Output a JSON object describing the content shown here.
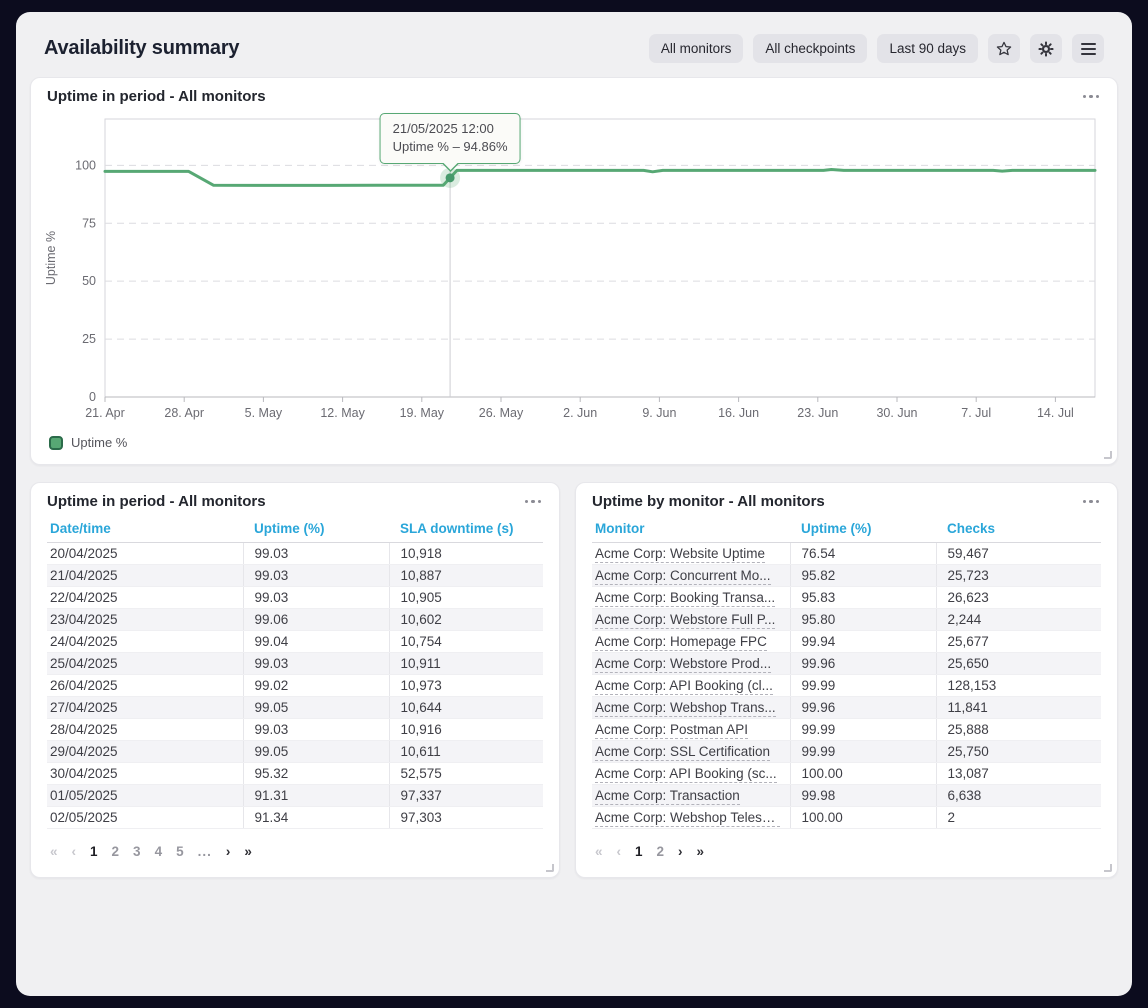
{
  "header": {
    "title": "Availability summary",
    "filters": {
      "monitors": "All monitors",
      "checkpoints": "All checkpoints",
      "period": "Last 90 days"
    }
  },
  "chart_card": {
    "title": "Uptime in period - All monitors",
    "legend_label": "Uptime %"
  },
  "chart_data": {
    "type": "line",
    "title": "Uptime in period - All monitors",
    "ylabel": "Uptime %",
    "ylim": [
      0,
      120
    ],
    "yticks": [
      0,
      25,
      50,
      75,
      100
    ],
    "x_tick_labels": [
      "21. Apr",
      "28. Apr",
      "5. May",
      "12. May",
      "19. May",
      "26. May",
      "2. Jun",
      "9. Jun",
      "16. Jun",
      "23. Jun",
      "30. Jun",
      "7. Jul",
      "14. Jul"
    ],
    "x_tick_interval_days": 7,
    "span_days": 87.5,
    "grid": "horizontal-dashed",
    "legend_position": "bottom-left",
    "series": [
      {
        "name": "Uptime %",
        "color": "#57a874",
        "points": [
          [
            0,
            97.4
          ],
          [
            7.4,
            97.4
          ],
          [
            9.6,
            91.4
          ],
          [
            20,
            91.35
          ],
          [
            24,
            91.4
          ],
          [
            29.9,
            91.4
          ],
          [
            31.1,
            97.8
          ],
          [
            41,
            97.8
          ],
          [
            47.6,
            97.8
          ],
          [
            48.4,
            97.2
          ],
          [
            49.3,
            97.8
          ],
          [
            63.5,
            97.8
          ],
          [
            64.2,
            98.2
          ],
          [
            65.3,
            97.8
          ],
          [
            78.5,
            97.8
          ],
          [
            79.3,
            97.5
          ],
          [
            80.2,
            97.8
          ],
          [
            87.5,
            97.8
          ]
        ]
      }
    ],
    "highlight": {
      "day": 30.5,
      "value": 94.86,
      "tooltip_datetime": "21/05/2025 12:00",
      "tooltip_text": "Uptime % – 94.86%"
    }
  },
  "left_table": {
    "title": "Uptime in period - All monitors",
    "columns": [
      "Date/time",
      "Uptime (%)",
      "SLA downtime (s)"
    ],
    "rows": [
      [
        "20/04/2025",
        "99.03",
        "10,918"
      ],
      [
        "21/04/2025",
        "99.03",
        "10,887"
      ],
      [
        "22/04/2025",
        "99.03",
        "10,905"
      ],
      [
        "23/04/2025",
        "99.06",
        "10,602"
      ],
      [
        "24/04/2025",
        "99.04",
        "10,754"
      ],
      [
        "25/04/2025",
        "99.03",
        "10,911"
      ],
      [
        "26/04/2025",
        "99.02",
        "10,973"
      ],
      [
        "27/04/2025",
        "99.05",
        "10,644"
      ],
      [
        "28/04/2025",
        "99.03",
        "10,916"
      ],
      [
        "29/04/2025",
        "99.05",
        "10,611"
      ],
      [
        "30/04/2025",
        "95.32",
        "52,575"
      ],
      [
        "01/05/2025",
        "91.31",
        "97,337"
      ],
      [
        "02/05/2025",
        "91.34",
        "97,303"
      ]
    ],
    "pagination": {
      "first": "«",
      "prev": "‹",
      "pages": [
        "1",
        "2",
        "3",
        "4",
        "5",
        "..."
      ],
      "active": "1",
      "next": "›",
      "last": "»"
    }
  },
  "right_table": {
    "title": "Uptime by monitor - All monitors",
    "columns": [
      "Monitor",
      "Uptime (%)",
      "Checks"
    ],
    "link_column": 0,
    "rows": [
      [
        "Acme Corp: Website Uptime",
        "76.54",
        "59,467"
      ],
      [
        "Acme Corp: Concurrent Mo...",
        "95.82",
        "25,723"
      ],
      [
        "Acme Corp: Booking Transa...",
        "95.83",
        "26,623"
      ],
      [
        "Acme Corp: Webstore Full P...",
        "95.80",
        "2,244"
      ],
      [
        "Acme Corp: Homepage FPC",
        "99.94",
        "25,677"
      ],
      [
        "Acme Corp: Webstore Prod...",
        "99.96",
        "25,650"
      ],
      [
        "Acme Corp: API Booking (cl...",
        "99.99",
        "128,153"
      ],
      [
        "Acme Corp: Webshop Trans...",
        "99.96",
        "11,841"
      ],
      [
        "Acme Corp: Postman API",
        "99.99",
        "25,888"
      ],
      [
        "Acme Corp: SSL Certification",
        "99.99",
        "25,750"
      ],
      [
        "Acme Corp: API Booking (sc...",
        "100.00",
        "13,087"
      ],
      [
        "Acme Corp: Transaction",
        "99.98",
        "6,638"
      ],
      [
        "Acme Corp: Webshop Telesc...",
        "100.00",
        "2"
      ]
    ],
    "pagination": {
      "first": "«",
      "prev": "‹",
      "pages": [
        "1",
        "2"
      ],
      "active": "1",
      "next": "›",
      "last": "»"
    }
  },
  "colors": {
    "line_green": "#57a874",
    "column_header_cyan": "#2aa6d9",
    "page_background": "#0c0c1e",
    "panel_background": "#f0f0f2"
  }
}
